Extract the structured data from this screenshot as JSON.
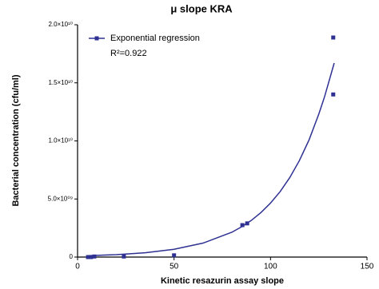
{
  "chart_data": {
    "type": "scatter",
    "title": "μ slope KRA",
    "x_label": "Kinetic resazurin assay slope",
    "y_label": "Bacterial concentration (cfu/ml)",
    "annotation": "R²=0.922",
    "legend": "upper left",
    "xlim": [
      0,
      150
    ],
    "xticks": [
      0,
      50,
      100,
      150
    ],
    "ylim": [
      0,
      20000000000
    ],
    "yticks": [
      0,
      {
        "value": 5000000000,
        "label": "5.0×10⁰⁹"
      },
      {
        "value": 10000000000,
        "label": "1.0×10¹⁰"
      },
      {
        "value": 15000000000,
        "label": "1.5×10¹⁰"
      },
      {
        "value": 20000000000,
        "label": "2.0×10¹⁰"
      }
    ],
    "series": [
      {
        "name": "Exponential regression",
        "color": "#2e3192",
        "x": [
          5.4,
          7,
          8.7,
          24,
          50,
          85.4,
          87.9,
          132.5,
          132.5
        ],
        "values": [
          0,
          0,
          50000000,
          50000000,
          150000000,
          2750000000,
          2900000000,
          18900000000,
          14000000000
        ],
        "fit_x": [
          5,
          20,
          35,
          50,
          65,
          80,
          85,
          90,
          95,
          100,
          105,
          110,
          115,
          120,
          125,
          128,
          133
        ],
        "fit_values": [
          117000000,
          209000000,
          373000000,
          668000000,
          1200000000,
          2140000000,
          2600000000,
          3150000000,
          3830000000,
          4650000000,
          5640000000,
          6850000000,
          8320000000,
          10100000000,
          12300000000,
          13800000000,
          16700000000
        ]
      }
    ]
  }
}
